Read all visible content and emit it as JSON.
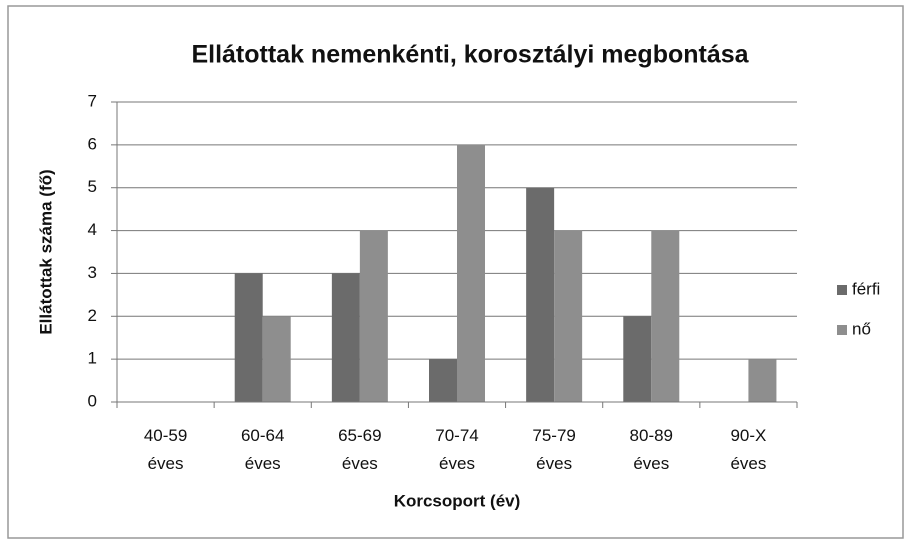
{
  "chart_data": {
    "type": "bar",
    "title": "Ellátottak nemenkénti, korosztályi megbontása",
    "x_label": "Korcsoport (év)",
    "y_label": "Ellátottak száma (fő)",
    "categories": [
      "40-59 éves",
      "60-64 éves",
      "65-69 éves",
      "70-74 éves",
      "75-79 éves",
      "80-89 éves",
      "90-X éves"
    ],
    "series": [
      {
        "name": "férfi",
        "color": "#6b6b6b",
        "values": [
          0,
          3,
          3,
          1,
          5,
          2,
          0
        ]
      },
      {
        "name": "nő",
        "color": "#8e8e8e",
        "values": [
          0,
          2,
          4,
          6,
          4,
          4,
          1
        ]
      }
    ],
    "ylim": [
      0,
      7
    ],
    "yticks": [
      0,
      1,
      2,
      3,
      4,
      5,
      6,
      7
    ],
    "grid": true,
    "legend": "right"
  }
}
